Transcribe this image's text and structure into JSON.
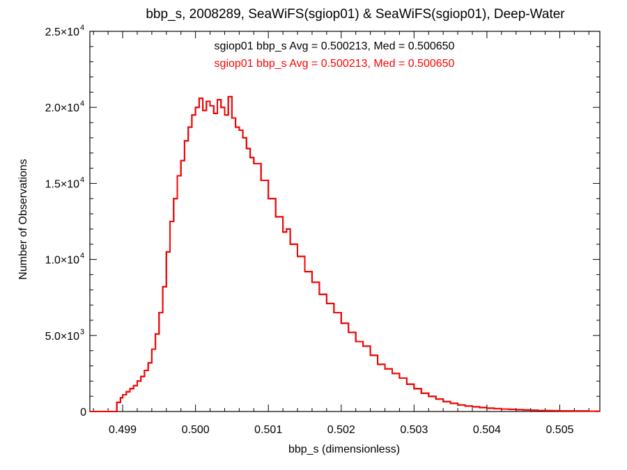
{
  "chart_data": {
    "type": "line",
    "title": "bbp_s, 2008289, SeaWiFS(sgiop01) & SeaWiFS(sgiop01), Deep-Water",
    "xlabel": "bbp_s (dimensionless)",
    "ylabel": "Number of Observations",
    "xlim": [
      0.49855,
      0.50555
    ],
    "ylim": [
      0,
      25000
    ],
    "x_ticks": [
      0.499,
      0.5,
      0.501,
      0.502,
      0.503,
      0.504,
      0.505
    ],
    "x_tick_labels": [
      "0.499",
      "0.500",
      "0.501",
      "0.502",
      "0.503",
      "0.504",
      "0.505"
    ],
    "y_ticks": [
      {
        "value": 0,
        "mant": "0",
        "exp": ""
      },
      {
        "value": 5000,
        "mant": "5.0×10",
        "exp": "3"
      },
      {
        "value": 10000,
        "mant": "1.0×10",
        "exp": "4"
      },
      {
        "value": 15000,
        "mant": "1.5×10",
        "exp": "4"
      },
      {
        "value": 20000,
        "mant": "2.0×10",
        "exp": "4"
      },
      {
        "value": 25000,
        "mant": "2.5×10",
        "exp": "4"
      }
    ],
    "annotations": [
      {
        "text": "sgiop01 bbp_s Avg = 0.500213, Med = 0.500650",
        "color": "#000000"
      },
      {
        "text": "sgiop01 bbp_s Avg = 0.500213, Med = 0.500650",
        "color": "#ff0000"
      }
    ],
    "series": [
      {
        "color_a": "#000000",
        "color_b": "#ff0000",
        "x": [
          0.49888,
          0.49892,
          0.49897,
          0.499,
          0.49905,
          0.4991,
          0.49915,
          0.4992,
          0.49925,
          0.4993,
          0.49935,
          0.4994,
          0.49945,
          0.4995,
          0.49955,
          0.4996,
          0.49965,
          0.4997,
          0.49975,
          0.4998,
          0.49985,
          0.4999,
          0.49995,
          0.5,
          0.50005,
          0.5001,
          0.50015,
          0.5002,
          0.50025,
          0.5003,
          0.50035,
          0.5004,
          0.50045,
          0.5005,
          0.50055,
          0.5006,
          0.50065,
          0.5007,
          0.50075,
          0.5008,
          0.5009,
          0.501,
          0.5011,
          0.5012,
          0.50125,
          0.5013,
          0.5014,
          0.5015,
          0.5016,
          0.5017,
          0.5018,
          0.5019,
          0.502,
          0.5021,
          0.5022,
          0.5023,
          0.5024,
          0.5025,
          0.5026,
          0.5027,
          0.5028,
          0.5029,
          0.503,
          0.5031,
          0.5032,
          0.5033,
          0.5034,
          0.5035,
          0.5036,
          0.5037,
          0.5038,
          0.5039,
          0.504,
          0.5041,
          0.5042,
          0.5043,
          0.5044,
          0.5045,
          0.5046,
          0.5047,
          0.5048,
          0.5049,
          0.505,
          0.5051,
          0.5052,
          0.5053,
          0.5054,
          0.5055
        ],
        "y": [
          0,
          600,
          900,
          1100,
          1300,
          1500,
          1700,
          2000,
          2300,
          2700,
          3200,
          4100,
          5100,
          6500,
          8200,
          10500,
          12500,
          14000,
          15500,
          16500,
          17800,
          18700,
          19500,
          20000,
          20600,
          19800,
          20400,
          20100,
          19600,
          20500,
          20000,
          19500,
          20700,
          19300,
          18700,
          18500,
          18000,
          17300,
          16700,
          16300,
          15200,
          14000,
          12800,
          11800,
          12000,
          11000,
          10200,
          9200,
          8500,
          7700,
          7100,
          6500,
          5800,
          5200,
          4600,
          4300,
          3700,
          3100,
          2800,
          2500,
          2200,
          1800,
          1500,
          1200,
          1000,
          820,
          650,
          540,
          430,
          360,
          310,
          260,
          220,
          190,
          160,
          140,
          120,
          100,
          85,
          70,
          60,
          50,
          45,
          40,
          35,
          30,
          25,
          20
        ]
      }
    ]
  }
}
